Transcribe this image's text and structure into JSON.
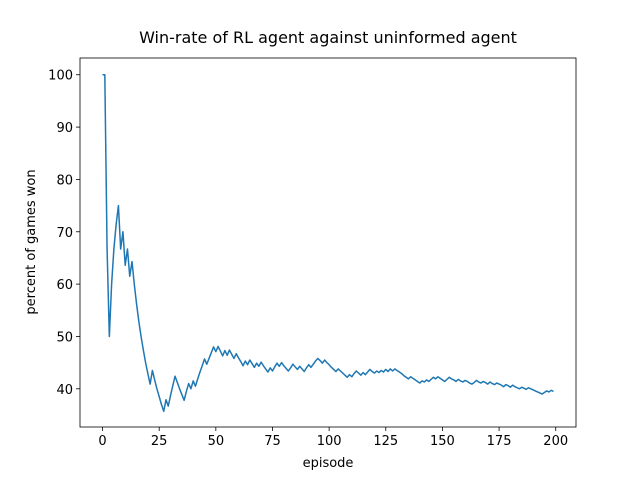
{
  "chart_data": {
    "type": "line",
    "title": "Win-rate of RL agent against uninformed agent",
    "x_label": "episode",
    "y_label": "percent of games won",
    "xlim": [
      -9.95,
      208.95
    ],
    "ylim": [
      32.7,
      103.2
    ],
    "xticks": [
      0,
      25,
      50,
      75,
      100,
      125,
      150,
      175,
      200
    ],
    "yticks": [
      40,
      50,
      60,
      70,
      80,
      90,
      100
    ],
    "series": [
      {
        "color": "#1f77b4",
        "x": [
          0,
          1,
          2,
          3,
          4,
          5,
          6,
          7,
          8,
          9,
          10,
          11,
          12,
          13,
          14,
          15,
          16,
          17,
          18,
          19,
          20,
          21,
          22,
          23,
          24,
          25,
          26,
          27,
          28,
          29,
          30,
          31,
          32,
          33,
          34,
          35,
          36,
          37,
          38,
          39,
          40,
          41,
          42,
          43,
          44,
          45,
          46,
          47,
          48,
          49,
          50,
          51,
          52,
          53,
          54,
          55,
          56,
          57,
          58,
          59,
          60,
          61,
          62,
          63,
          64,
          65,
          66,
          67,
          68,
          69,
          70,
          71,
          72,
          73,
          74,
          75,
          76,
          77,
          78,
          79,
          80,
          81,
          82,
          83,
          84,
          85,
          86,
          87,
          88,
          89,
          90,
          91,
          92,
          93,
          94,
          95,
          96,
          97,
          98,
          99,
          100,
          101,
          102,
          103,
          104,
          105,
          106,
          107,
          108,
          109,
          110,
          111,
          112,
          113,
          114,
          115,
          116,
          117,
          118,
          119,
          120,
          121,
          122,
          123,
          124,
          125,
          126,
          127,
          128,
          129,
          130,
          131,
          132,
          133,
          134,
          135,
          136,
          137,
          138,
          139,
          140,
          141,
          142,
          143,
          144,
          145,
          146,
          147,
          148,
          149,
          150,
          151,
          152,
          153,
          154,
          155,
          156,
          157,
          158,
          159,
          160,
          161,
          162,
          163,
          164,
          165,
          166,
          167,
          168,
          169,
          170,
          171,
          172,
          173,
          174,
          175,
          176,
          177,
          178,
          179,
          180,
          181,
          182,
          183,
          184,
          185,
          186,
          187,
          188,
          189,
          190,
          191,
          192,
          193,
          194,
          195,
          196,
          197,
          198,
          199
        ],
        "values": [
          100,
          100,
          66.7,
          50,
          60,
          66.7,
          71.4,
          75,
          66.7,
          70,
          63.6,
          66.7,
          61.5,
          64.3,
          60,
          56.25,
          52.9,
          50,
          47.4,
          45,
          42.9,
          40.9,
          43.5,
          41.7,
          40,
          38.5,
          37.0,
          35.7,
          37.9,
          36.7,
          38.7,
          40.6,
          42.4,
          41.2,
          40,
          38.9,
          37.8,
          39.5,
          41.0,
          40,
          41.5,
          40.5,
          41.9,
          43.2,
          44.4,
          45.7,
          44.7,
          45.8,
          46.9,
          48.0,
          47.1,
          48.1,
          47.2,
          46.3,
          47.3,
          46.4,
          47.4,
          46.6,
          45.8,
          46.7,
          45.9,
          45.2,
          44.4,
          45.3,
          44.6,
          45.5,
          44.8,
          44.1,
          44.9,
          44.3,
          45.1,
          44.4,
          43.8,
          43.2,
          44.0,
          43.4,
          44.2,
          44.9,
          44.3,
          45.0,
          44.4,
          43.9,
          43.4,
          44.0,
          44.7,
          44.2,
          43.7,
          44.3,
          43.8,
          43.3,
          44.0,
          44.6,
          44.1,
          44.7,
          45.3,
          45.8,
          45.4,
          44.9,
          45.5,
          45.0,
          44.6,
          44.1,
          43.7,
          43.3,
          43.8,
          43.4,
          43.0,
          42.6,
          42.2,
          42.7,
          42.3,
          42.9,
          43.4,
          43.0,
          42.6,
          43.1,
          42.7,
          43.2,
          43.7,
          43.3,
          43.0,
          43.4,
          43.1,
          43.5,
          43.2,
          43.7,
          43.3,
          43.8,
          43.4,
          43.8,
          43.5,
          43.2,
          42.9,
          42.5,
          42.2,
          41.9,
          42.3,
          42.0,
          41.7,
          41.4,
          41.1,
          41.5,
          41.3,
          41.7,
          41.4,
          41.8,
          42.2,
          41.9,
          42.3,
          42.0,
          41.7,
          41.4,
          41.8,
          42.2,
          41.9,
          41.7,
          41.4,
          41.8,
          41.5,
          41.3,
          41.6,
          41.4,
          41.1,
          40.9,
          41.2,
          41.6,
          41.3,
          41.1,
          41.4,
          41.2,
          40.9,
          41.3,
          41.0,
          40.8,
          41.1,
          40.9,
          40.7,
          40.4,
          40.8,
          40.6,
          40.3,
          40.7,
          40.4,
          40.2,
          40.0,
          40.3,
          40.1,
          39.9,
          40.2,
          40.0,
          39.8,
          39.6,
          39.4,
          39.2,
          39.0,
          39.3,
          39.6,
          39.4,
          39.7,
          39.5
        ]
      }
    ]
  }
}
